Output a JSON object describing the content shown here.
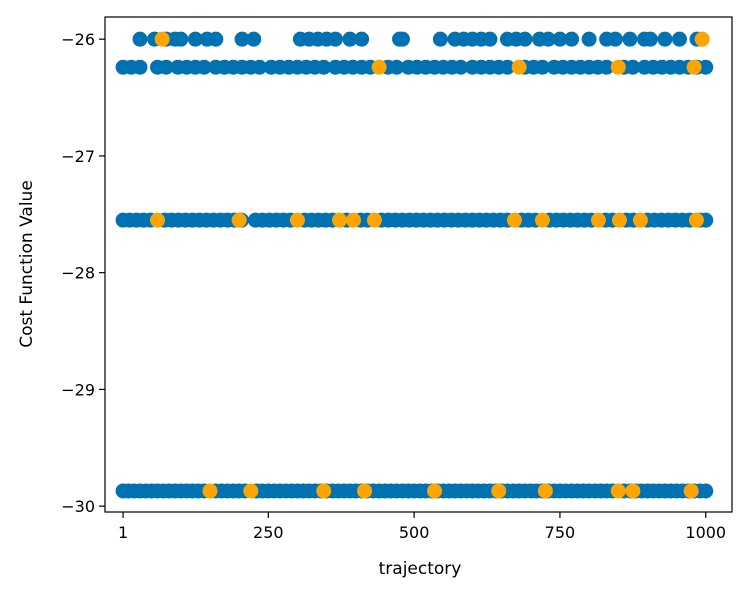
{
  "chart_data": {
    "type": "scatter",
    "xlabel": "trajectory",
    "ylabel": "Cost Function Value",
    "xlim": [
      -30,
      1045
    ],
    "ylim": [
      -30.05,
      -25.81
    ],
    "x_ticks": [
      1,
      250,
      500,
      750,
      1000
    ],
    "x_tick_labels": [
      "1",
      "250",
      "500",
      "750",
      "1000"
    ],
    "y_ticks": [
      -30,
      -29,
      -28,
      -27,
      -26
    ],
    "y_tick_labels": [
      "−30",
      "−29",
      "−28",
      "−27",
      "−26"
    ],
    "grid": false,
    "levels": [
      -26.0,
      -26.24,
      -27.55,
      -29.87
    ],
    "series": [
      {
        "color": "#0072B2",
        "points": [
          [
            30,
            -26.0
          ],
          [
            55,
            -26.0
          ],
          [
            75,
            -26.0
          ],
          [
            90,
            -26.0
          ],
          [
            100,
            -26.0
          ],
          [
            125,
            -26.0
          ],
          [
            145,
            -26.0
          ],
          [
            160,
            -26.0
          ],
          [
            205,
            -26.0
          ],
          [
            225,
            -26.0
          ],
          [
            305,
            -26.0
          ],
          [
            320,
            -26.0
          ],
          [
            335,
            -26.0
          ],
          [
            350,
            -26.0
          ],
          [
            365,
            -26.0
          ],
          [
            390,
            -26.0
          ],
          [
            410,
            -26.0
          ],
          [
            475,
            -26.0
          ],
          [
            480,
            -26.0
          ],
          [
            545,
            -26.0
          ],
          [
            570,
            -26.0
          ],
          [
            585,
            -26.0
          ],
          [
            600,
            -26.0
          ],
          [
            615,
            -26.0
          ],
          [
            630,
            -26.0
          ],
          [
            660,
            -26.0
          ],
          [
            675,
            -26.0
          ],
          [
            690,
            -26.0
          ],
          [
            715,
            -26.0
          ],
          [
            730,
            -26.0
          ],
          [
            750,
            -26.0
          ],
          [
            770,
            -26.0
          ],
          [
            800,
            -26.0
          ],
          [
            830,
            -26.0
          ],
          [
            845,
            -26.0
          ],
          [
            870,
            -26.0
          ],
          [
            895,
            -26.0
          ],
          [
            905,
            -26.0
          ],
          [
            930,
            -26.0
          ],
          [
            955,
            -26.0
          ],
          [
            985,
            -26.0
          ],
          [
            1,
            -26.24
          ],
          [
            15,
            -26.24
          ],
          [
            30,
            -26.24
          ],
          [
            60,
            -26.24
          ],
          [
            75,
            -26.24
          ],
          [
            95,
            -26.24
          ],
          [
            110,
            -26.24
          ],
          [
            125,
            -26.24
          ],
          [
            140,
            -26.24
          ],
          [
            160,
            -26.24
          ],
          [
            175,
            -26.24
          ],
          [
            190,
            -26.24
          ],
          [
            205,
            -26.24
          ],
          [
            220,
            -26.24
          ],
          [
            235,
            -26.24
          ],
          [
            255,
            -26.24
          ],
          [
            270,
            -26.24
          ],
          [
            285,
            -26.24
          ],
          [
            300,
            -26.24
          ],
          [
            315,
            -26.24
          ],
          [
            330,
            -26.24
          ],
          [
            345,
            -26.24
          ],
          [
            365,
            -26.24
          ],
          [
            380,
            -26.24
          ],
          [
            395,
            -26.24
          ],
          [
            410,
            -26.24
          ],
          [
            425,
            -26.24
          ],
          [
            455,
            -26.24
          ],
          [
            470,
            -26.24
          ],
          [
            490,
            -26.24
          ],
          [
            505,
            -26.24
          ],
          [
            520,
            -26.24
          ],
          [
            535,
            -26.24
          ],
          [
            550,
            -26.24
          ],
          [
            565,
            -26.24
          ],
          [
            580,
            -26.24
          ],
          [
            600,
            -26.24
          ],
          [
            615,
            -26.24
          ],
          [
            630,
            -26.24
          ],
          [
            645,
            -26.24
          ],
          [
            660,
            -26.24
          ],
          [
            690,
            -26.24
          ],
          [
            705,
            -26.24
          ],
          [
            720,
            -26.24
          ],
          [
            740,
            -26.24
          ],
          [
            755,
            -26.24
          ],
          [
            770,
            -26.24
          ],
          [
            785,
            -26.24
          ],
          [
            800,
            -26.24
          ],
          [
            815,
            -26.24
          ],
          [
            830,
            -26.24
          ],
          [
            860,
            -26.24
          ],
          [
            875,
            -26.24
          ],
          [
            895,
            -26.24
          ],
          [
            910,
            -26.24
          ],
          [
            925,
            -26.24
          ],
          [
            940,
            -26.24
          ],
          [
            955,
            -26.24
          ],
          [
            970,
            -26.24
          ],
          [
            985,
            -26.24
          ],
          [
            1000,
            -26.24
          ],
          [
            1,
            -27.55
          ],
          [
            12,
            -27.55
          ],
          [
            24,
            -27.55
          ],
          [
            36,
            -27.55
          ],
          [
            48,
            -27.55
          ],
          [
            72,
            -27.55
          ],
          [
            84,
            -27.55
          ],
          [
            96,
            -27.55
          ],
          [
            108,
            -27.55
          ],
          [
            120,
            -27.55
          ],
          [
            132,
            -27.55
          ],
          [
            144,
            -27.55
          ],
          [
            156,
            -27.55
          ],
          [
            168,
            -27.55
          ],
          [
            180,
            -27.55
          ],
          [
            192,
            -27.55
          ],
          [
            204,
            -27.55
          ],
          [
            228,
            -27.55
          ],
          [
            240,
            -27.55
          ],
          [
            252,
            -27.55
          ],
          [
            264,
            -27.55
          ],
          [
            276,
            -27.55
          ],
          [
            288,
            -27.55
          ],
          [
            312,
            -27.55
          ],
          [
            324,
            -27.55
          ],
          [
            336,
            -27.55
          ],
          [
            348,
            -27.55
          ],
          [
            360,
            -27.55
          ],
          [
            384,
            -27.55
          ],
          [
            408,
            -27.55
          ],
          [
            420,
            -27.55
          ],
          [
            444,
            -27.55
          ],
          [
            456,
            -27.55
          ],
          [
            468,
            -27.55
          ],
          [
            480,
            -27.55
          ],
          [
            492,
            -27.55
          ],
          [
            504,
            -27.55
          ],
          [
            516,
            -27.55
          ],
          [
            528,
            -27.55
          ],
          [
            540,
            -27.55
          ],
          [
            552,
            -27.55
          ],
          [
            564,
            -27.55
          ],
          [
            576,
            -27.55
          ],
          [
            588,
            -27.55
          ],
          [
            600,
            -27.55
          ],
          [
            612,
            -27.55
          ],
          [
            624,
            -27.55
          ],
          [
            636,
            -27.55
          ],
          [
            648,
            -27.55
          ],
          [
            660,
            -27.55
          ],
          [
            684,
            -27.55
          ],
          [
            696,
            -27.55
          ],
          [
            708,
            -27.55
          ],
          [
            732,
            -27.55
          ],
          [
            744,
            -27.55
          ],
          [
            756,
            -27.55
          ],
          [
            768,
            -27.55
          ],
          [
            780,
            -27.55
          ],
          [
            792,
            -27.55
          ],
          [
            804,
            -27.55
          ],
          [
            828,
            -27.55
          ],
          [
            840,
            -27.55
          ],
          [
            864,
            -27.55
          ],
          [
            876,
            -27.55
          ],
          [
            900,
            -27.55
          ],
          [
            912,
            -27.55
          ],
          [
            924,
            -27.55
          ],
          [
            936,
            -27.55
          ],
          [
            948,
            -27.55
          ],
          [
            960,
            -27.55
          ],
          [
            972,
            -27.55
          ],
          [
            990,
            -27.55
          ],
          [
            1000,
            -27.55
          ],
          [
            1,
            -29.87
          ],
          [
            10,
            -29.87
          ],
          [
            20,
            -29.87
          ],
          [
            30,
            -29.87
          ],
          [
            40,
            -29.87
          ],
          [
            50,
            -29.87
          ],
          [
            60,
            -29.87
          ],
          [
            70,
            -29.87
          ],
          [
            80,
            -29.87
          ],
          [
            90,
            -29.87
          ],
          [
            100,
            -29.87
          ],
          [
            110,
            -29.87
          ],
          [
            120,
            -29.87
          ],
          [
            130,
            -29.87
          ],
          [
            140,
            -29.87
          ],
          [
            160,
            -29.87
          ],
          [
            170,
            -29.87
          ],
          [
            180,
            -29.87
          ],
          [
            190,
            -29.87
          ],
          [
            200,
            -29.87
          ],
          [
            210,
            -29.87
          ],
          [
            230,
            -29.87
          ],
          [
            240,
            -29.87
          ],
          [
            250,
            -29.87
          ],
          [
            260,
            -29.87
          ],
          [
            270,
            -29.87
          ],
          [
            280,
            -29.87
          ],
          [
            290,
            -29.87
          ],
          [
            300,
            -29.87
          ],
          [
            310,
            -29.87
          ],
          [
            320,
            -29.87
          ],
          [
            330,
            -29.87
          ],
          [
            340,
            -29.87
          ],
          [
            350,
            -29.87
          ],
          [
            360,
            -29.87
          ],
          [
            370,
            -29.87
          ],
          [
            380,
            -29.87
          ],
          [
            390,
            -29.87
          ],
          [
            400,
            -29.87
          ],
          [
            410,
            -29.87
          ],
          [
            420,
            -29.87
          ],
          [
            430,
            -29.87
          ],
          [
            440,
            -29.87
          ],
          [
            450,
            -29.87
          ],
          [
            460,
            -29.87
          ],
          [
            470,
            -29.87
          ],
          [
            480,
            -29.87
          ],
          [
            490,
            -29.87
          ],
          [
            500,
            -29.87
          ],
          [
            510,
            -29.87
          ],
          [
            520,
            -29.87
          ],
          [
            530,
            -29.87
          ],
          [
            540,
            -29.87
          ],
          [
            550,
            -29.87
          ],
          [
            560,
            -29.87
          ],
          [
            570,
            -29.87
          ],
          [
            580,
            -29.87
          ],
          [
            590,
            -29.87
          ],
          [
            600,
            -29.87
          ],
          [
            610,
            -29.87
          ],
          [
            620,
            -29.87
          ],
          [
            630,
            -29.87
          ],
          [
            640,
            -29.87
          ],
          [
            650,
            -29.87
          ],
          [
            660,
            -29.87
          ],
          [
            670,
            -29.87
          ],
          [
            680,
            -29.87
          ],
          [
            690,
            -29.87
          ],
          [
            700,
            -29.87
          ],
          [
            710,
            -29.87
          ],
          [
            720,
            -29.87
          ],
          [
            730,
            -29.87
          ],
          [
            740,
            -29.87
          ],
          [
            750,
            -29.87
          ],
          [
            760,
            -29.87
          ],
          [
            770,
            -29.87
          ],
          [
            780,
            -29.87
          ],
          [
            790,
            -29.87
          ],
          [
            800,
            -29.87
          ],
          [
            810,
            -29.87
          ],
          [
            820,
            -29.87
          ],
          [
            830,
            -29.87
          ],
          [
            840,
            -29.87
          ],
          [
            860,
            -29.87
          ],
          [
            870,
            -29.87
          ],
          [
            880,
            -29.87
          ],
          [
            890,
            -29.87
          ],
          [
            900,
            -29.87
          ],
          [
            910,
            -29.87
          ],
          [
            920,
            -29.87
          ],
          [
            930,
            -29.87
          ],
          [
            940,
            -29.87
          ],
          [
            950,
            -29.87
          ],
          [
            960,
            -29.87
          ],
          [
            970,
            -29.87
          ],
          [
            980,
            -29.87
          ],
          [
            990,
            -29.87
          ],
          [
            1000,
            -29.87
          ]
        ]
      },
      {
        "color": "#FFA500",
        "points": [
          [
            68,
            -26.0
          ],
          [
            994,
            -26.0
          ],
          [
            440,
            -26.24
          ],
          [
            680,
            -26.24
          ],
          [
            850,
            -26.24
          ],
          [
            980,
            -26.24
          ],
          [
            60,
            -27.55
          ],
          [
            200,
            -27.55
          ],
          [
            300,
            -27.55
          ],
          [
            372,
            -27.55
          ],
          [
            396,
            -27.55
          ],
          [
            432,
            -27.55
          ],
          [
            672,
            -27.55
          ],
          [
            720,
            -27.55
          ],
          [
            816,
            -27.55
          ],
          [
            852,
            -27.55
          ],
          [
            888,
            -27.55
          ],
          [
            984,
            -27.55
          ],
          [
            150,
            -29.87
          ],
          [
            220,
            -29.87
          ],
          [
            345,
            -29.87
          ],
          [
            415,
            -29.87
          ],
          [
            535,
            -29.87
          ],
          [
            645,
            -29.87
          ],
          [
            725,
            -29.87
          ],
          [
            850,
            -29.87
          ],
          [
            875,
            -29.87
          ],
          [
            975,
            -29.87
          ]
        ]
      }
    ]
  }
}
